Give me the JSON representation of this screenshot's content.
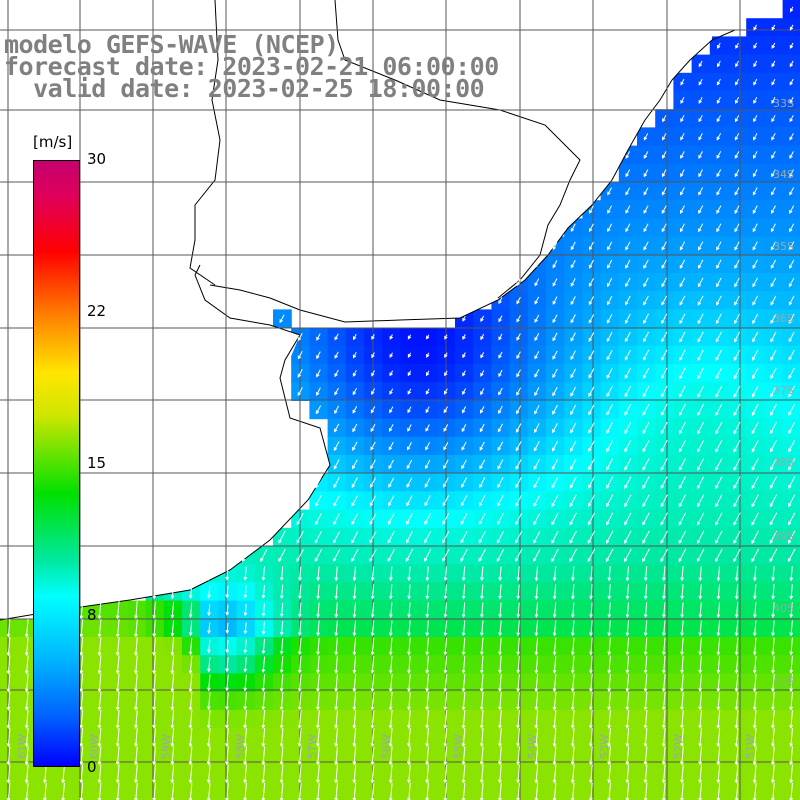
{
  "title": {
    "line1": "modelo GEFS-WAVE (NCEP)",
    "line2": "forecast date: 2023-02-21 06:00:00",
    "line3": "  valid date: 2023-02-25 18:00:00"
  },
  "colorbar": {
    "unit_label": "[m/s]",
    "ticks": [
      "30",
      "22",
      "15",
      "8",
      "0"
    ],
    "range": [
      0,
      30
    ]
  },
  "grid_labels": {
    "latitudes": [
      "33S",
      "34S",
      "35S",
      "36S",
      "37S",
      "38S",
      "39S",
      "40S",
      "41S"
    ],
    "longitudes": [
      "61W",
      "60W",
      "59W",
      "58W",
      "57W",
      "56W",
      "55W",
      "54W",
      "53W",
      "52W",
      "51W"
    ]
  },
  "colors": {
    "land": "#ffffff",
    "coast": "#000000",
    "grid": "#555555",
    "arrows": "#ffffff",
    "title": "#808080"
  }
}
